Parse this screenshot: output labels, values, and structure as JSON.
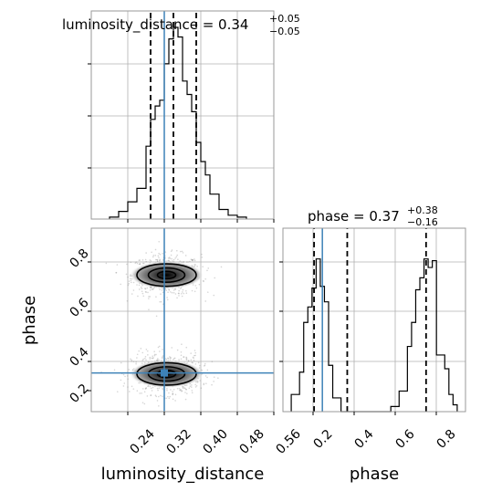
{
  "chart_data": {
    "type": "corner",
    "parameters": [
      "luminosity_distance",
      "phase"
    ],
    "truth": {
      "luminosity_distance": 0.32,
      "phase": 0.25
    },
    "colors": {
      "truth": "#3d82b8",
      "hist": "#000000",
      "grid": "#b0b0b0",
      "scatter": "#8a8a8a"
    },
    "panels": {
      "ld_hist": {
        "title": "luminosity_distance = 0.34",
        "title_sup": "+0.05",
        "title_sub": "−0.05",
        "xlim": [
          0.16,
          0.56
        ],
        "ylim": [
          0,
          1
        ],
        "quantiles": [
          0.29,
          0.34,
          0.39
        ],
        "bin_edges": [
          0.2,
          0.22,
          0.24,
          0.26,
          0.28,
          0.29,
          0.3,
          0.31,
          0.32,
          0.33,
          0.34,
          0.35,
          0.36,
          0.37,
          0.38,
          0.39,
          0.4,
          0.41,
          0.42,
          0.44,
          0.46,
          0.48,
          0.5
        ],
        "counts": [
          0.01,
          0.04,
          0.09,
          0.16,
          0.38,
          0.52,
          0.59,
          0.62,
          0.81,
          0.94,
          1.0,
          0.95,
          0.72,
          0.65,
          0.56,
          0.4,
          0.3,
          0.23,
          0.13,
          0.05,
          0.02,
          0.01
        ]
      },
      "phase_hist": {
        "title": "phase = 0.37",
        "title_sup": "+0.38",
        "title_sub": "−0.16",
        "xlim": [
          0.06,
          0.94
        ],
        "ylim": [
          0,
          1
        ],
        "quantiles": [
          0.21,
          0.37,
          0.75
        ],
        "bin_edges": [
          0.1,
          0.14,
          0.16,
          0.18,
          0.2,
          0.22,
          0.24,
          0.26,
          0.28,
          0.3,
          0.34,
          0.58,
          0.62,
          0.66,
          0.68,
          0.7,
          0.72,
          0.74,
          0.76,
          0.78,
          0.8,
          0.84,
          0.86,
          0.88,
          0.9
        ],
        "counts": [
          0.1,
          0.23,
          0.52,
          0.61,
          0.72,
          0.89,
          0.73,
          0.64,
          0.27,
          0.08,
          0.0,
          0.03,
          0.12,
          0.38,
          0.52,
          0.71,
          0.78,
          0.89,
          0.84,
          0.88,
          0.33,
          0.25,
          0.1,
          0.04
        ]
      },
      "joint": {
        "xlim": [
          0.16,
          0.56
        ],
        "ylim": [
          0.06,
          0.96
        ],
        "modes": [
          {
            "cx": 0.325,
            "cy": 0.73,
            "sx": 0.038,
            "sy": 0.05,
            "contours": [
              [
                0.02,
                0.018
              ],
              [
                0.04,
                0.035
              ],
              [
                0.065,
                0.055
              ]
            ]
          },
          {
            "cx": 0.325,
            "cy": 0.245,
            "sx": 0.038,
            "sy": 0.05,
            "contours": [
              [
                0.02,
                0.018
              ],
              [
                0.04,
                0.035
              ],
              [
                0.065,
                0.055
              ]
            ]
          }
        ]
      }
    },
    "axes": {
      "x_ticks_ld": [
        "0.24",
        "0.32",
        "0.40",
        "0.48",
        "0.56"
      ],
      "x_ticks_phase": [
        "0.2",
        "0.4",
        "0.6",
        "0.8"
      ],
      "y_ticks_phase": [
        "0.2",
        "0.4",
        "0.6",
        "0.8"
      ],
      "xlabel_ld": "luminosity_distance",
      "xlabel_phase": "phase",
      "ylabel_phase": "phase"
    }
  }
}
